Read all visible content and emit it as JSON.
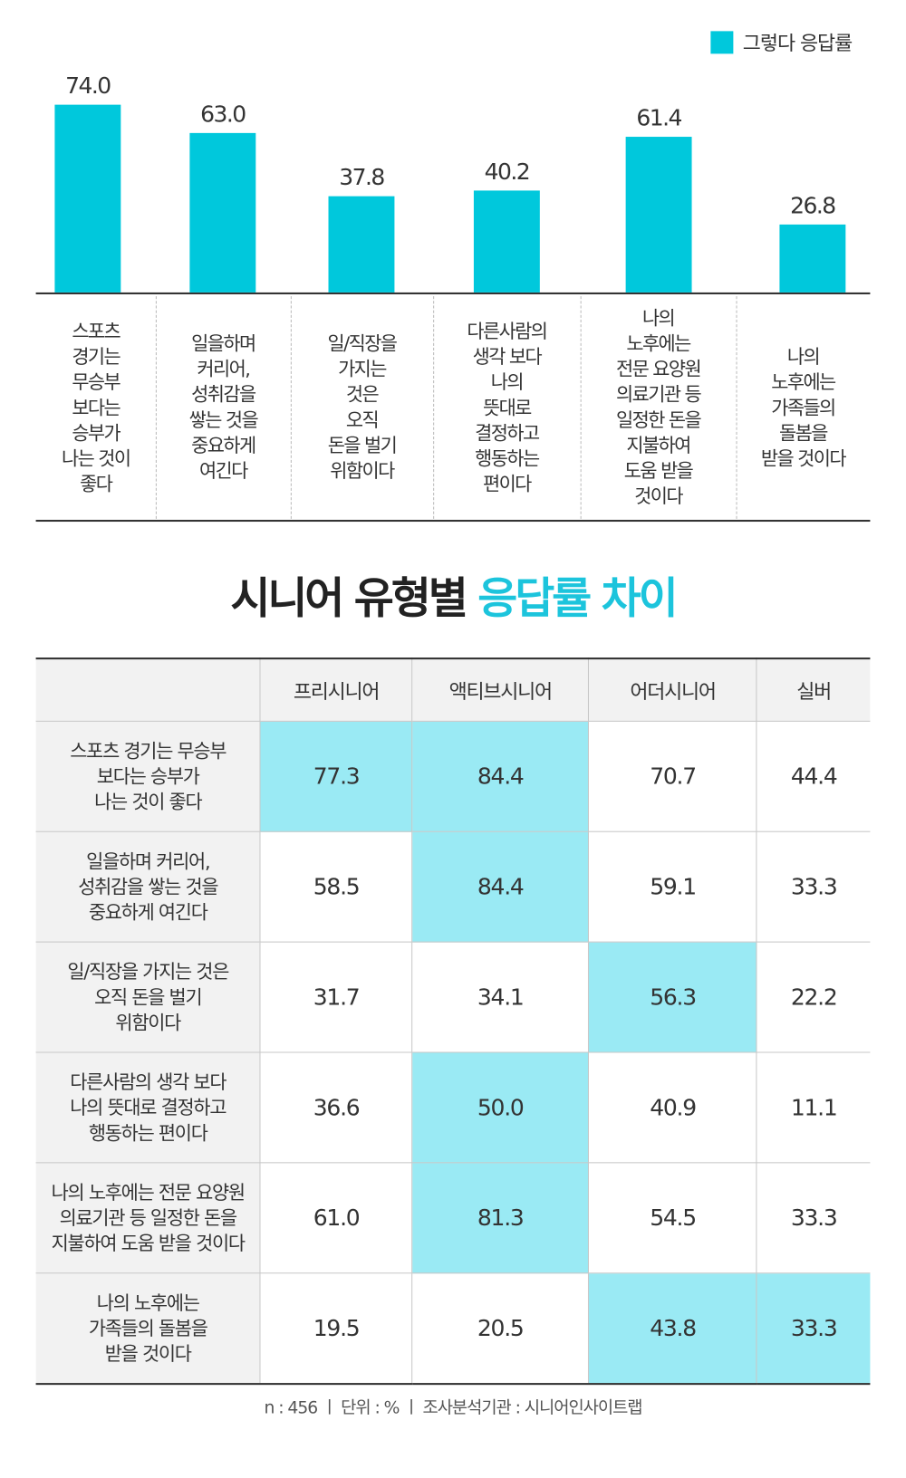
{
  "legend": {
    "label": "그렇다 응답률",
    "color": "#00c8dc"
  },
  "chart_data": {
    "type": "bar",
    "categories": [
      "스포츠\n경기는\n무승부\n보다는\n승부가\n나는 것이\n좋다",
      "일을하며\n커리어,\n성취감을\n쌓는 것을\n중요하게\n여긴다",
      "일/직장을\n가지는\n것은\n오직\n돈을 벌기\n위함이다",
      "다른사람의\n생각 보다\n나의\n뜻대로\n결정하고\n행동하는\n편이다",
      "나의\n노후에는\n전문 요양원\n의료기관 등\n일정한 돈을\n지불하여\n도움 받을\n것이다",
      "나의\n노후에는\n가족들의\n돌봄을\n받을 것이다"
    ],
    "values": [
      74.0,
      63.0,
      37.8,
      40.2,
      61.4,
      26.8
    ],
    "value_labels": [
      "74.0",
      "63.0",
      "37.8",
      "40.2",
      "61.4",
      "26.8"
    ],
    "series": [
      {
        "name": "그렇다 응답률",
        "values": [
          74.0,
          63.0,
          37.8,
          40.2,
          61.4,
          26.8
        ]
      }
    ],
    "ylim": [
      0,
      80
    ],
    "grid": false,
    "legend_position": "top-right"
  },
  "title": {
    "part1": "시니어 유형별 ",
    "part2": "응답률 차이"
  },
  "table": {
    "headers": [
      "",
      "프리시니어",
      "액티브시니어",
      "어더시니어",
      "실버"
    ],
    "rows": [
      {
        "label": "스포츠 경기는 무승부\n보다는 승부가\n나는 것이 좋다",
        "values": [
          "77.3",
          "84.4",
          "70.7",
          "44.4"
        ],
        "highlight": [
          true,
          true,
          false,
          false
        ]
      },
      {
        "label": "일을하며 커리어,\n성취감을 쌓는 것을\n중요하게 여긴다",
        "values": [
          "58.5",
          "84.4",
          "59.1",
          "33.3"
        ],
        "highlight": [
          false,
          true,
          false,
          false
        ]
      },
      {
        "label": "일/직장을 가지는 것은\n오직 돈을 벌기\n위함이다",
        "values": [
          "31.7",
          "34.1",
          "56.3",
          "22.2"
        ],
        "highlight": [
          false,
          false,
          true,
          false
        ]
      },
      {
        "label": "다른사람의 생각 보다\n나의 뜻대로 결정하고\n행동하는 편이다",
        "values": [
          "36.6",
          "50.0",
          "40.9",
          "11.1"
        ],
        "highlight": [
          false,
          true,
          false,
          false
        ]
      },
      {
        "label": "나의 노후에는 전문 요양원\n의료기관 등 일정한 돈을\n지불하여 도움 받을 것이다",
        "values": [
          "61.0",
          "81.3",
          "54.5",
          "33.3"
        ],
        "highlight": [
          false,
          true,
          false,
          false
        ]
      },
      {
        "label": "나의 노후에는\n가족들의 돌봄을\n받을 것이다",
        "values": [
          "19.5",
          "20.5",
          "43.8",
          "33.3"
        ],
        "highlight": [
          false,
          false,
          true,
          true
        ]
      }
    ]
  },
  "footer": "n : 456  ㅣ 단위 : %  ㅣ 조사분석기관 : 시니어인사이트랩"
}
